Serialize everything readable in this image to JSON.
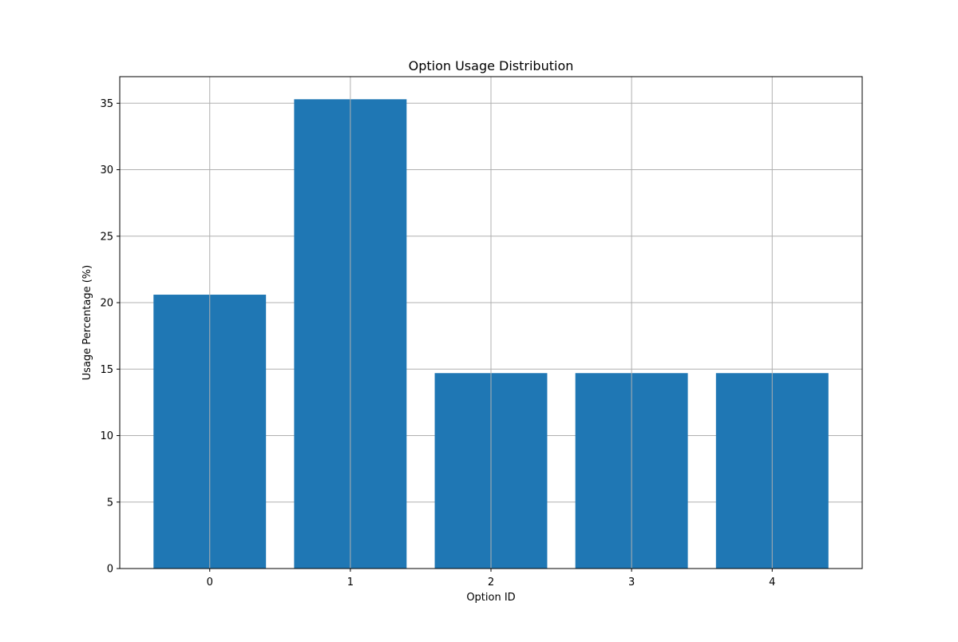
{
  "chart_data": {
    "type": "bar",
    "title": "Option Usage Distribution",
    "xlabel": "Option ID",
    "ylabel": "Usage Percentage (%)",
    "categories": [
      "0",
      "1",
      "2",
      "3",
      "4"
    ],
    "values": [
      20.6,
      35.3,
      14.7,
      14.7,
      14.7
    ],
    "ylim": [
      0,
      37
    ],
    "yticks": [
      0,
      5,
      10,
      15,
      20,
      25,
      30,
      35
    ],
    "ytick_labels": [
      "0",
      "5",
      "10",
      "15",
      "20",
      "25",
      "30",
      "35"
    ],
    "grid": true,
    "legend": "none",
    "bar_color": "#1f77b4",
    "grid_color": "#b0b0b0"
  }
}
